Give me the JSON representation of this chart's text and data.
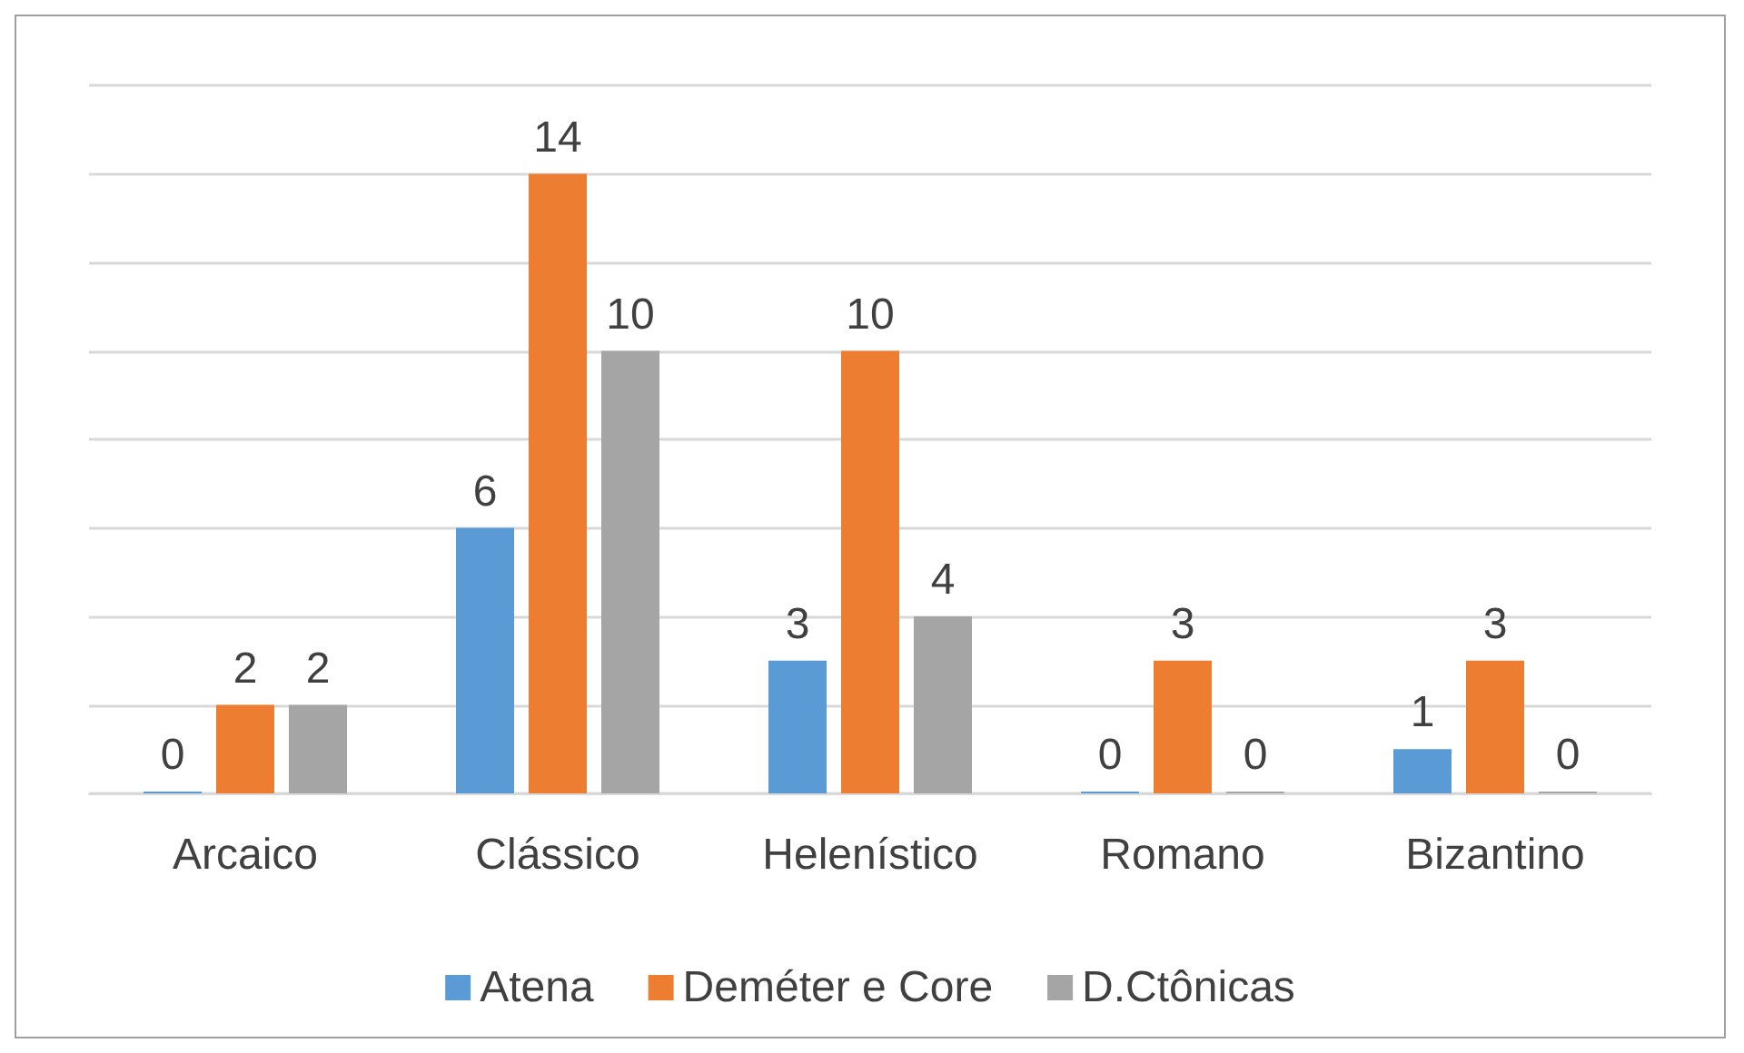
{
  "chart_data": {
    "type": "bar",
    "categories": [
      "Arcaico",
      "Clássico",
      "Helenístico",
      "Romano",
      "Bizantino"
    ],
    "series": [
      {
        "name": "Atena",
        "color": "#5b9bd5",
        "values": [
          0,
          6,
          3,
          0,
          1
        ]
      },
      {
        "name": "Deméter e Core",
        "color": "#ed7d31",
        "values": [
          2,
          14,
          10,
          3,
          3
        ]
      },
      {
        "name": "D.Ctônicas",
        "color": "#a5a5a5",
        "values": [
          2,
          10,
          4,
          0,
          0
        ]
      }
    ],
    "ylim": [
      0,
      16
    ],
    "yticks": [
      {
        "value": 0,
        "label": null
      },
      {
        "value": 2,
        "label": null
      },
      {
        "value": 4,
        "label": null
      },
      {
        "value": 6,
        "label": null
      },
      {
        "value": 8,
        "label": null
      },
      {
        "value": 10,
        "label": null
      },
      {
        "value": 12,
        "label": null
      },
      {
        "value": 14,
        "label": null
      },
      {
        "value": 16,
        "label": null
      }
    ],
    "grid": "y",
    "legend": "bottom",
    "data_labels": true,
    "tick_labels": "x"
  }
}
